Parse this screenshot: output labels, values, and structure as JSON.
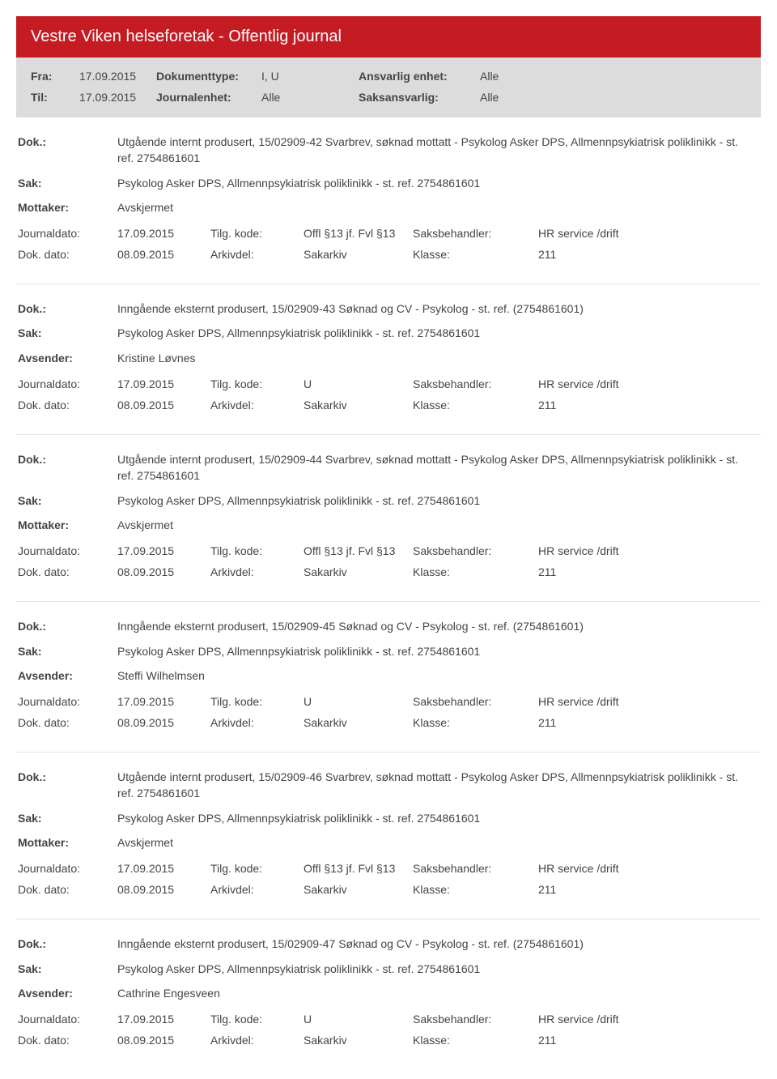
{
  "title": "Vestre Viken helseforetak - Offentlig journal",
  "filters": {
    "fra_lbl": "Fra:",
    "fra_val": "17.09.2015",
    "til_lbl": "Til:",
    "til_val": "17.09.2015",
    "doktype_lbl": "Dokumenttype:",
    "doktype_val": "I, U",
    "journalenhet_lbl": "Journalenhet:",
    "journalenhet_val": "Alle",
    "ansvarlig_lbl": "Ansvarlig enhet:",
    "ansvarlig_val": "Alle",
    "saksansvarlig_lbl": "Saksansvarlig:",
    "saksansvarlig_val": "Alle"
  },
  "labels": {
    "dok": "Dok.:",
    "sak": "Sak:",
    "mottaker": "Mottaker:",
    "avsender": "Avsender:",
    "journaldato": "Journaldato:",
    "tilgkode": "Tilg. kode:",
    "saksbehandler": "Saksbehandler:",
    "dokdato": "Dok. dato:",
    "arkivdel": "Arkivdel:",
    "klasse": "Klasse:"
  },
  "entries": [
    {
      "dok": "Utgående internt produsert, 15/02909-42 Svarbrev, søknad mottatt - Psykolog Asker DPS, Allmennpsykiatrisk poliklinikk - st. ref. 2754861601",
      "sak": "Psykolog Asker DPS, Allmennpsykiatrisk poliklinikk - st. ref. 2754861601",
      "party_lbl": "Mottaker:",
      "party": "Avskjermet",
      "journaldato": "17.09.2015",
      "tilgkode": "Offl §13 jf. Fvl §13",
      "saksbehandler": "HR service /drift",
      "dokdato": "08.09.2015",
      "arkivdel": "Sakarkiv",
      "klasse": "211"
    },
    {
      "dok": "Inngående eksternt produsert, 15/02909-43 Søknad og CV - Psykolog - st. ref. (2754861601)",
      "sak": "Psykolog Asker DPS, Allmennpsykiatrisk poliklinikk - st. ref. 2754861601",
      "party_lbl": "Avsender:",
      "party": "Kristine Løvnes",
      "journaldato": "17.09.2015",
      "tilgkode": "U",
      "saksbehandler": "HR service /drift",
      "dokdato": "08.09.2015",
      "arkivdel": "Sakarkiv",
      "klasse": "211"
    },
    {
      "dok": "Utgående internt produsert, 15/02909-44 Svarbrev, søknad mottatt - Psykolog Asker DPS, Allmennpsykiatrisk poliklinikk - st. ref. 2754861601",
      "sak": "Psykolog Asker DPS, Allmennpsykiatrisk poliklinikk - st. ref. 2754861601",
      "party_lbl": "Mottaker:",
      "party": "Avskjermet",
      "journaldato": "17.09.2015",
      "tilgkode": "Offl §13 jf. Fvl §13",
      "saksbehandler": "HR service /drift",
      "dokdato": "08.09.2015",
      "arkivdel": "Sakarkiv",
      "klasse": "211"
    },
    {
      "dok": "Inngående eksternt produsert, 15/02909-45 Søknad og CV - Psykolog - st. ref. (2754861601)",
      "sak": "Psykolog Asker DPS, Allmennpsykiatrisk poliklinikk - st. ref. 2754861601",
      "party_lbl": "Avsender:",
      "party": "Steffi Wilhelmsen",
      "journaldato": "17.09.2015",
      "tilgkode": "U",
      "saksbehandler": "HR service /drift",
      "dokdato": "08.09.2015",
      "arkivdel": "Sakarkiv",
      "klasse": "211"
    },
    {
      "dok": "Utgående internt produsert, 15/02909-46 Svarbrev, søknad mottatt - Psykolog Asker DPS, Allmennpsykiatrisk poliklinikk - st. ref. 2754861601",
      "sak": "Psykolog Asker DPS, Allmennpsykiatrisk poliklinikk - st. ref. 2754861601",
      "party_lbl": "Mottaker:",
      "party": "Avskjermet",
      "journaldato": "17.09.2015",
      "tilgkode": "Offl §13 jf. Fvl §13",
      "saksbehandler": "HR service /drift",
      "dokdato": "08.09.2015",
      "arkivdel": "Sakarkiv",
      "klasse": "211"
    },
    {
      "dok": "Inngående eksternt produsert, 15/02909-47 Søknad og CV - Psykolog - st. ref. (2754861601)",
      "sak": "Psykolog Asker DPS, Allmennpsykiatrisk poliklinikk - st. ref. 2754861601",
      "party_lbl": "Avsender:",
      "party": "Cathrine Engesveen",
      "journaldato": "17.09.2015",
      "tilgkode": "U",
      "saksbehandler": "HR service /drift",
      "dokdato": "08.09.2015",
      "arkivdel": "Sakarkiv",
      "klasse": "211"
    }
  ]
}
